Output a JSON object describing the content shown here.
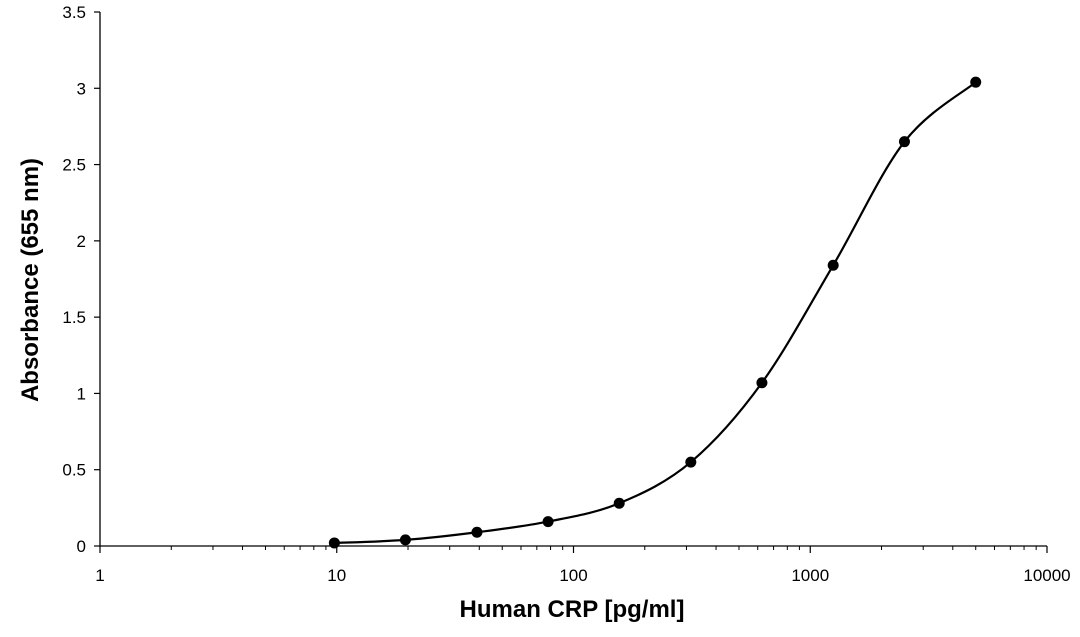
{
  "chart_data": {
    "type": "scatter",
    "title": "",
    "xlabel": "Human CRP [pg/ml]",
    "ylabel": "Absorbance (655 nm)",
    "x_scale": "log",
    "xlim": [
      1,
      10000
    ],
    "ylim": [
      0,
      3.5
    ],
    "x_ticks": [
      "1",
      "10",
      "100",
      "1000",
      "10000"
    ],
    "y_ticks": [
      "0",
      "0.5",
      "1",
      "1.5",
      "2",
      "2.5",
      "3",
      "3.5"
    ],
    "grid": false,
    "legend": "none",
    "series": [
      {
        "x": [
          9.77,
          19.5,
          39.1,
          78.1,
          156,
          313,
          625,
          1250,
          2500,
          5000
        ],
        "y": [
          0.02,
          0.04,
          0.09,
          0.16,
          0.28,
          0.55,
          1.07,
          1.84,
          2.65,
          3.04
        ],
        "color": "#000000",
        "line": "smooth"
      }
    ]
  }
}
